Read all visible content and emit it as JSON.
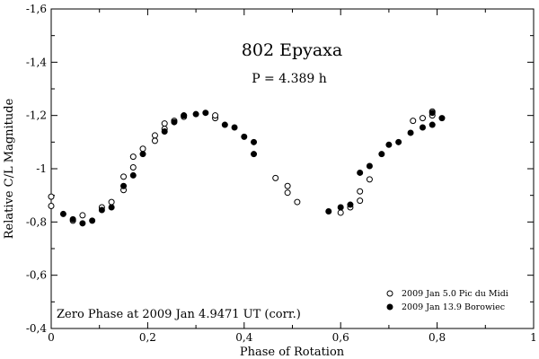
{
  "chart_data": {
    "type": "scatter",
    "title": "802 Epyaxa",
    "subtitle": "P = 4.389 h",
    "xlabel": "Phase of Rotation",
    "ylabel": "Relative C/L Magnitude",
    "xlim": [
      0,
      1
    ],
    "ylim": [
      -1.6,
      -0.4
    ],
    "y_inverted": true,
    "x_ticks": [
      0,
      0.2,
      0.4,
      0.6,
      0.8,
      1
    ],
    "x_tick_labels": [
      "0",
      "0,2",
      "0,4",
      "0,6",
      "0,8",
      "1"
    ],
    "y_ticks": [
      -1.6,
      -1.4,
      -1.2,
      -1.0,
      -0.8,
      -0.6,
      -0.4
    ],
    "y_tick_labels": [
      "-1,6",
      "-1,4",
      "-1,2",
      "-1",
      "-0,8",
      "-0,6",
      "-0,4"
    ],
    "annotation": "Zero Phase at  2009 Jan 4.9471 UT (corr.)",
    "grid": false,
    "legend_position": "bottom-right",
    "series": [
      {
        "name": "2009 Jan 5.0 Pic du Midi",
        "marker": "open-circle",
        "points": [
          [
            0.0,
            -0.895
          ],
          [
            0.0,
            -0.86
          ],
          [
            0.045,
            -0.805
          ],
          [
            0.065,
            -0.825
          ],
          [
            0.105,
            -0.855
          ],
          [
            0.125,
            -0.875
          ],
          [
            0.15,
            -0.92
          ],
          [
            0.15,
            -0.97
          ],
          [
            0.17,
            -1.005
          ],
          [
            0.17,
            -1.045
          ],
          [
            0.19,
            -1.075
          ],
          [
            0.215,
            -1.105
          ],
          [
            0.215,
            -1.125
          ],
          [
            0.235,
            -1.15
          ],
          [
            0.235,
            -1.17
          ],
          [
            0.255,
            -1.18
          ],
          [
            0.275,
            -1.195
          ],
          [
            0.275,
            -1.2
          ],
          [
            0.34,
            -1.19
          ],
          [
            0.34,
            -1.2
          ],
          [
            0.465,
            -0.965
          ],
          [
            0.49,
            -0.935
          ],
          [
            0.49,
            -0.91
          ],
          [
            0.51,
            -0.875
          ],
          [
            0.6,
            -0.835
          ],
          [
            0.62,
            -0.855
          ],
          [
            0.64,
            -0.88
          ],
          [
            0.64,
            -0.915
          ],
          [
            0.66,
            -0.96
          ],
          [
            0.75,
            -1.18
          ],
          [
            0.77,
            -1.19
          ],
          [
            0.79,
            -1.2
          ],
          [
            0.79,
            -1.215
          ]
        ]
      },
      {
        "name": "2009 Jan 13.9 Borowiec",
        "marker": "filled-circle",
        "points": [
          [
            0.025,
            -0.83
          ],
          [
            0.045,
            -0.81
          ],
          [
            0.065,
            -0.795
          ],
          [
            0.085,
            -0.805
          ],
          [
            0.105,
            -0.845
          ],
          [
            0.125,
            -0.855
          ],
          [
            0.15,
            -0.935
          ],
          [
            0.17,
            -0.975
          ],
          [
            0.19,
            -1.055
          ],
          [
            0.235,
            -1.14
          ],
          [
            0.255,
            -1.175
          ],
          [
            0.275,
            -1.2
          ],
          [
            0.3,
            -1.205
          ],
          [
            0.32,
            -1.21
          ],
          [
            0.36,
            -1.165
          ],
          [
            0.38,
            -1.155
          ],
          [
            0.4,
            -1.12
          ],
          [
            0.42,
            -1.1
          ],
          [
            0.42,
            -1.055
          ],
          [
            0.575,
            -0.84
          ],
          [
            0.6,
            -0.855
          ],
          [
            0.62,
            -0.865
          ],
          [
            0.64,
            -0.985
          ],
          [
            0.66,
            -1.01
          ],
          [
            0.685,
            -1.055
          ],
          [
            0.7,
            -1.09
          ],
          [
            0.72,
            -1.1
          ],
          [
            0.745,
            -1.135
          ],
          [
            0.77,
            -1.155
          ],
          [
            0.79,
            -1.165
          ],
          [
            0.79,
            -1.21
          ],
          [
            0.81,
            -1.19
          ]
        ]
      }
    ]
  }
}
